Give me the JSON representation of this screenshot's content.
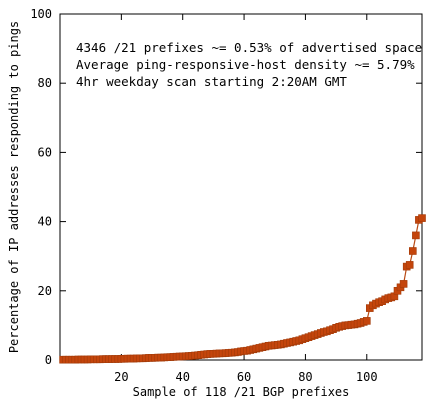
{
  "chart_data": {
    "type": "line",
    "title": "",
    "xlabel": "Sample of 118 /21 BGP prefixes",
    "ylabel": "Percentage of IP addresses responding to pings",
    "xlim": [
      0,
      118
    ],
    "ylim": [
      0,
      100
    ],
    "x_ticks": [
      20,
      40,
      60,
      80,
      100
    ],
    "y_ticks": [
      0,
      20,
      40,
      60,
      80,
      100
    ],
    "grid": false,
    "annotations": [
      "4346 /21 prefixes ~= 0.53% of advertised space",
      "Average ping-responsive-host density ~= 5.79%",
      "4hr weekday scan starting 2:20AM GMT"
    ],
    "series": [
      {
        "color": "#c4450c",
        "marker": "square",
        "x": [
          1,
          2,
          3,
          4,
          5,
          6,
          7,
          8,
          9,
          10,
          11,
          12,
          13,
          14,
          15,
          16,
          17,
          18,
          19,
          20,
          21,
          22,
          23,
          24,
          25,
          26,
          27,
          28,
          29,
          30,
          31,
          32,
          33,
          34,
          35,
          36,
          37,
          38,
          39,
          40,
          41,
          42,
          43,
          44,
          45,
          46,
          47,
          48,
          49,
          50,
          51,
          52,
          53,
          54,
          55,
          56,
          57,
          58,
          59,
          60,
          61,
          62,
          63,
          64,
          65,
          66,
          67,
          68,
          69,
          70,
          71,
          72,
          73,
          74,
          75,
          76,
          77,
          78,
          79,
          80,
          81,
          82,
          83,
          84,
          85,
          86,
          87,
          88,
          89,
          90,
          91,
          92,
          93,
          94,
          95,
          96,
          97,
          98,
          99,
          100,
          101,
          102,
          103,
          104,
          105,
          106,
          107,
          108,
          109,
          110,
          111,
          112,
          113,
          114,
          115,
          116,
          117,
          118
        ],
        "y": [
          0.1,
          0.1,
          0.1,
          0.1,
          0.1,
          0.15,
          0.15,
          0.15,
          0.15,
          0.2,
          0.2,
          0.2,
          0.2,
          0.25,
          0.25,
          0.25,
          0.3,
          0.3,
          0.3,
          0.35,
          0.35,
          0.4,
          0.4,
          0.4,
          0.45,
          0.5,
          0.5,
          0.55,
          0.6,
          0.6,
          0.65,
          0.7,
          0.7,
          0.75,
          0.8,
          0.85,
          0.9,
          0.95,
          1.0,
          1.05,
          1.1,
          1.15,
          1.2,
          1.3,
          1.4,
          1.5,
          1.6,
          1.7,
          1.75,
          1.8,
          1.85,
          1.9,
          1.95,
          2.0,
          2.05,
          2.1,
          2.2,
          2.3,
          2.5,
          2.6,
          2.7,
          2.9,
          3.1,
          3.3,
          3.5,
          3.7,
          3.9,
          4.1,
          4.2,
          4.3,
          4.4,
          4.5,
          4.7,
          4.9,
          5.1,
          5.3,
          5.5,
          5.7,
          6.0,
          6.3,
          6.6,
          6.9,
          7.2,
          7.5,
          7.8,
          8.1,
          8.3,
          8.6,
          8.9,
          9.3,
          9.6,
          9.8,
          10.0,
          10.1,
          10.2,
          10.3,
          10.5,
          10.7,
          11.0,
          11.3,
          15.0,
          15.8,
          16.3,
          16.7,
          17.0,
          17.5,
          17.9,
          18.1,
          18.4,
          20.0,
          21.0,
          22.0,
          27.0,
          27.5,
          31.5,
          36.0,
          40.5,
          41.0
        ]
      }
    ]
  }
}
